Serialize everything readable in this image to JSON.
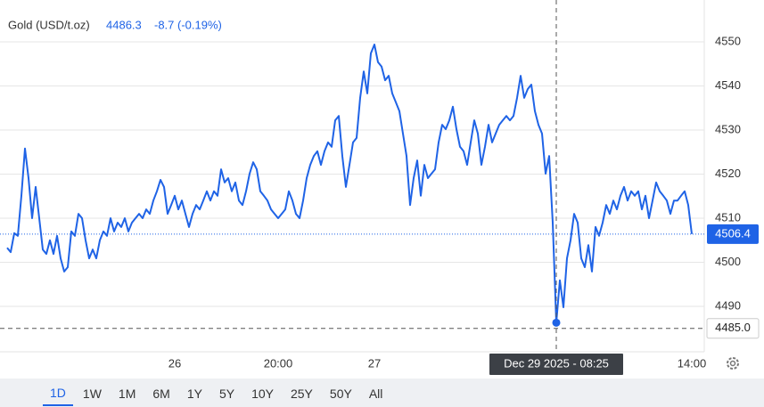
{
  "header": {
    "name": "Gold (USD/t.oz)",
    "price": "4486.3",
    "change": "-8.7 (-0.19%)"
  },
  "chart_data": {
    "type": "line",
    "categories": [
      null,
      null,
      null,
      null,
      null,
      null,
      null,
      null,
      null,
      null,
      null,
      null,
      null,
      null,
      null,
      null,
      null,
      null,
      null,
      null,
      null,
      null,
      null,
      null,
      null,
      null,
      null,
      null,
      null,
      null,
      null,
      null,
      null,
      null,
      null,
      null,
      null,
      null,
      null,
      null,
      null,
      null,
      null,
      null,
      null,
      null,
      null,
      "26",
      null,
      null,
      null,
      null,
      null,
      null,
      null,
      null,
      null,
      null,
      null,
      null,
      null,
      null,
      null,
      null,
      null,
      null,
      null,
      null,
      null,
      null,
      null,
      null,
      null,
      null,
      null,
      null,
      "20:00",
      null,
      null,
      null,
      null,
      null,
      null,
      null,
      null,
      null,
      null,
      null,
      null,
      null,
      null,
      null,
      null,
      null,
      null,
      null,
      null,
      null,
      null,
      null,
      null,
      null,
      null,
      "27",
      null,
      null,
      null,
      null,
      null,
      null,
      null,
      null,
      null,
      null,
      null,
      null,
      null,
      null,
      null,
      null,
      null,
      null,
      null,
      null,
      null,
      null,
      null,
      null,
      null,
      null,
      null,
      null,
      null,
      null,
      null,
      null,
      null,
      null,
      null,
      null,
      null,
      null,
      null,
      null,
      null,
      null,
      null,
      null,
      null,
      null,
      null,
      null,
      null,
      null,
      "Dec 29 2025 - 08:25",
      null,
      null,
      null,
      null,
      null,
      null,
      null,
      null,
      null,
      null,
      null,
      null,
      null,
      null,
      null,
      null,
      null,
      null,
      null,
      null,
      null,
      null,
      null,
      null,
      null,
      null,
      null,
      null,
      null,
      null,
      null,
      null,
      null,
      null,
      null,
      null,
      null,
      "14:00"
    ],
    "series": [
      {
        "name": "Gold (USD/t.oz)",
        "color": "#1f63e6",
        "values": [
          4503.3,
          4502.3,
          4506.6,
          4506.0,
          4515.1,
          4525.8,
          4519.1,
          4510.0,
          4517.1,
          4510.0,
          4502.9,
          4501.9,
          4505.0,
          4501.9,
          4506.0,
          4500.9,
          4497.9,
          4498.9,
          4507.0,
          4506.0,
          4511.0,
          4510.0,
          4505.0,
          4500.9,
          4502.9,
          4500.9,
          4505.0,
          4507.0,
          4506.0,
          4510.0,
          4507.0,
          4509.0,
          4508.0,
          4510.0,
          4507.0,
          4509.0,
          4510.0,
          4511.0,
          4510.0,
          4512.0,
          4511.0,
          4514.0,
          4516.1,
          4518.7,
          4517.1,
          4511.0,
          4513.0,
          4515.1,
          4512.0,
          4514.0,
          4511.0,
          4508.0,
          4511.0,
          4513.0,
          4512.0,
          4514.0,
          4516.1,
          4514.0,
          4516.1,
          4515.1,
          4521.1,
          4518.1,
          4519.1,
          4516.1,
          4518.1,
          4514.0,
          4513.0,
          4516.1,
          4520.1,
          4522.7,
          4521.1,
          4516.1,
          4515.1,
          4514.0,
          4512.0,
          4511.0,
          4510.0,
          4511.0,
          4512.0,
          4516.1,
          4514.0,
          4511.0,
          4510.0,
          4514.0,
          4519.1,
          4522.1,
          4524.1,
          4525.2,
          4522.1,
          4525.2,
          4527.2,
          4526.2,
          4532.2,
          4533.2,
          4524.1,
          4517.1,
          4522.1,
          4527.2,
          4528.2,
          4537.3,
          4543.3,
          4538.3,
          4547.4,
          4549.4,
          4545.4,
          4544.4,
          4541.3,
          4542.3,
          4538.3,
          4536.3,
          4534.3,
          4529.2,
          4524.1,
          4513.0,
          4519.1,
          4523.1,
          4515.1,
          4522.1,
          4519.1,
          4520.1,
          4521.1,
          4527.2,
          4531.2,
          4530.2,
          4532.2,
          4535.3,
          4530.2,
          4526.2,
          4525.2,
          4522.1,
          4527.2,
          4532.2,
          4529.2,
          4522.1,
          4526.2,
          4531.2,
          4527.2,
          4529.2,
          4531.2,
          4532.2,
          4533.2,
          4532.2,
          4533.2,
          4537.3,
          4542.3,
          4537.3,
          4539.3,
          4540.3,
          4534.3,
          4531.2,
          4529.2,
          4520.1,
          4524.1,
          4509.0,
          4486.3,
          4495.9,
          4489.8,
          4500.9,
          4505.0,
          4511.0,
          4509.0,
          4500.9,
          4498.9,
          4503.9,
          4497.9,
          4508.0,
          4506.0,
          4509.0,
          4513.0,
          4511.0,
          4514.0,
          4512.0,
          4515.1,
          4517.1,
          4514.0,
          4516.1,
          4515.1,
          4516.1,
          4512.0,
          4515.1,
          4510.0,
          4514.0,
          4518.1,
          4516.1,
          4515.1,
          4514.0,
          4511.0,
          4514.0,
          4514.0,
          4515.1,
          4516.1,
          4513.0,
          4506.4
        ]
      }
    ],
    "ylim": [
      4479.7,
      4559.5
    ],
    "yticks": [
      4490,
      4500,
      4510,
      4520,
      4530,
      4540,
      4550
    ],
    "grid": true,
    "crosshair": {
      "x": "Dec 29 2025 - 08:25",
      "y": {
        "value": 4485,
        "label": "4485.0"
      }
    }
  },
  "ranges": [
    "1D",
    "1W",
    "1M",
    "6M",
    "1Y",
    "5Y",
    "10Y",
    "25Y",
    "50Y",
    "All"
  ],
  "selected_range": "1D"
}
